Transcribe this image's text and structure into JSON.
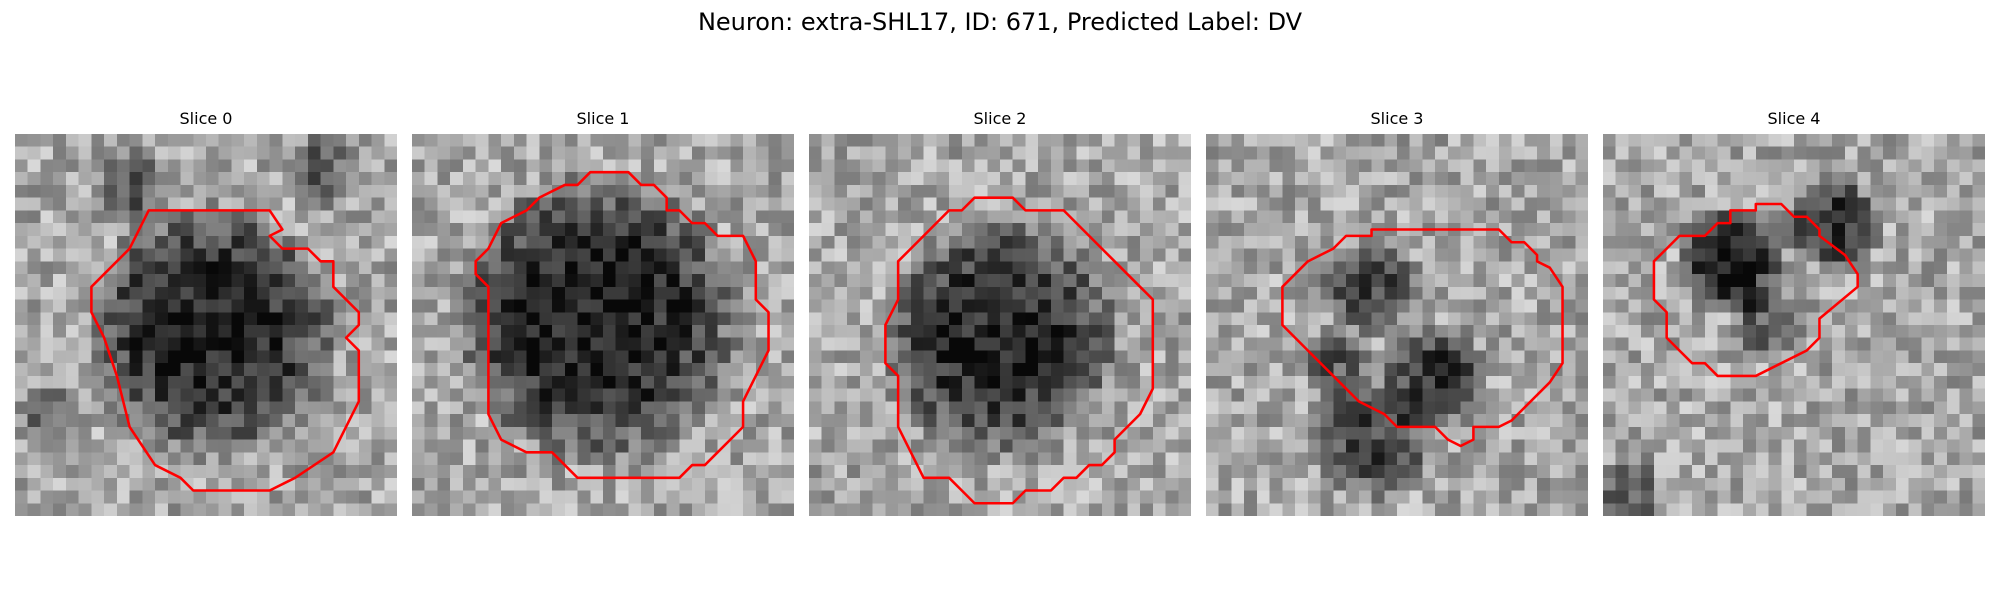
{
  "figure": {
    "title": "Neuron: extra-SHL17, ID: 671, Predicted Label: DV"
  },
  "contour_color": "#ff0000",
  "grid_cells": 30,
  "panels": [
    {
      "title": "Slice 0",
      "seed": 11,
      "blobs": [
        {
          "cx": 15.5,
          "cy": 15.5,
          "r": 10.5,
          "depth": 0.55
        },
        {
          "cx": 9,
          "cy": 4,
          "r": 3,
          "depth": 0.35
        },
        {
          "cx": 24,
          "cy": 3,
          "r": 3,
          "depth": 0.3
        },
        {
          "cx": 3,
          "cy": 22,
          "r": 3,
          "depth": 0.25
        }
      ],
      "contour": [
        [
          10.5,
          6
        ],
        [
          16.5,
          6
        ],
        [
          20,
          6
        ],
        [
          21,
          7.5
        ],
        [
          20,
          8
        ],
        [
          21,
          9
        ],
        [
          23,
          9
        ],
        [
          24,
          10
        ],
        [
          25,
          10
        ],
        [
          25,
          12
        ],
        [
          27,
          14
        ],
        [
          27,
          15
        ],
        [
          26,
          16
        ],
        [
          27,
          17
        ],
        [
          27,
          21
        ],
        [
          26,
          23
        ],
        [
          25,
          25
        ],
        [
          22,
          27
        ],
        [
          20,
          28
        ],
        [
          14,
          28
        ],
        [
          13,
          27
        ],
        [
          11,
          26
        ],
        [
          9,
          23
        ],
        [
          8,
          19
        ],
        [
          7,
          16
        ],
        [
          6,
          14
        ],
        [
          6,
          12
        ],
        [
          7,
          11
        ],
        [
          9,
          9
        ],
        [
          10,
          7
        ]
      ]
    },
    {
      "title": "Slice 1",
      "seed": 23,
      "blobs": [
        {
          "cx": 14.5,
          "cy": 14.5,
          "r": 12,
          "depth": 0.55
        }
      ],
      "contour": [
        [
          16,
          3
        ],
        [
          17,
          3
        ],
        [
          18,
          4
        ],
        [
          19,
          4
        ],
        [
          20,
          5
        ],
        [
          20,
          6
        ],
        [
          21,
          6
        ],
        [
          22,
          7
        ],
        [
          23,
          7
        ],
        [
          24,
          8
        ],
        [
          26,
          8
        ],
        [
          27,
          10
        ],
        [
          27,
          13
        ],
        [
          28,
          14
        ],
        [
          28,
          17
        ],
        [
          27,
          19
        ],
        [
          26,
          21
        ],
        [
          26,
          23
        ],
        [
          25,
          24
        ],
        [
          24,
          25
        ],
        [
          23,
          26
        ],
        [
          22,
          26
        ],
        [
          21,
          27
        ],
        [
          13,
          27
        ],
        [
          11,
          25
        ],
        [
          9,
          25
        ],
        [
          7,
          24
        ],
        [
          6,
          22
        ],
        [
          6,
          12
        ],
        [
          5,
          11
        ],
        [
          5,
          10
        ],
        [
          6,
          9
        ],
        [
          7,
          7
        ],
        [
          9,
          6
        ],
        [
          10,
          5
        ],
        [
          12,
          4
        ],
        [
          13,
          4
        ],
        [
          14,
          3
        ]
      ]
    },
    {
      "title": "Slice 2",
      "seed": 37,
      "blobs": [
        {
          "cx": 15,
          "cy": 16,
          "r": 10,
          "depth": 0.52
        }
      ],
      "contour": [
        [
          13,
          5
        ],
        [
          16,
          5
        ],
        [
          17,
          6
        ],
        [
          20,
          6
        ],
        [
          21,
          7
        ],
        [
          22,
          8
        ],
        [
          23,
          9
        ],
        [
          24,
          10
        ],
        [
          25,
          11
        ],
        [
          26,
          12
        ],
        [
          27,
          13
        ],
        [
          27,
          20
        ],
        [
          26,
          22
        ],
        [
          25,
          23
        ],
        [
          24,
          24
        ],
        [
          24,
          25
        ],
        [
          23,
          26
        ],
        [
          22,
          26
        ],
        [
          21,
          27
        ],
        [
          20,
          27
        ],
        [
          19,
          28
        ],
        [
          17,
          28
        ],
        [
          16,
          29
        ],
        [
          13,
          29
        ],
        [
          12,
          28
        ],
        [
          11,
          27
        ],
        [
          9,
          27
        ],
        [
          8,
          25
        ],
        [
          7,
          23
        ],
        [
          7,
          19
        ],
        [
          6,
          18
        ],
        [
          6,
          15
        ],
        [
          7,
          13
        ],
        [
          7,
          10
        ],
        [
          8,
          9
        ],
        [
          9,
          8
        ],
        [
          10,
          7
        ],
        [
          11,
          6
        ],
        [
          12,
          6
        ]
      ]
    },
    {
      "title": "Slice 3",
      "seed": 59,
      "blobs": [
        {
          "cx": 13,
          "cy": 12,
          "r": 4,
          "depth": 0.4
        },
        {
          "cx": 18,
          "cy": 19,
          "r": 4.5,
          "depth": 0.45
        },
        {
          "cx": 13,
          "cy": 24,
          "r": 5,
          "depth": 0.4
        },
        {
          "cx": 10,
          "cy": 18,
          "r": 3,
          "depth": 0.3
        }
      ],
      "contour": [
        [
          12,
          8
        ],
        [
          13,
          8
        ],
        [
          13,
          7.5
        ],
        [
          23,
          7.5
        ],
        [
          24,
          8.5
        ],
        [
          25,
          8.5
        ],
        [
          26,
          9.5
        ],
        [
          26,
          10
        ],
        [
          27,
          10.5
        ],
        [
          28,
          12
        ],
        [
          28,
          18
        ],
        [
          27,
          19.5
        ],
        [
          24,
          22.5
        ],
        [
          23,
          23
        ],
        [
          22,
          23
        ],
        [
          21,
          23
        ],
        [
          21,
          24
        ],
        [
          20,
          24.5
        ],
        [
          19,
          24
        ],
        [
          18,
          23
        ],
        [
          15,
          23
        ],
        [
          14,
          22
        ],
        [
          12,
          21
        ],
        [
          8,
          17
        ],
        [
          6,
          15
        ],
        [
          6,
          12
        ],
        [
          7,
          11
        ],
        [
          8,
          10
        ],
        [
          10,
          9
        ],
        [
          11,
          8
        ]
      ]
    },
    {
      "title": "Slice 4",
      "seed": 83,
      "blobs": [
        {
          "cx": 10,
          "cy": 10,
          "r": 4.5,
          "depth": 0.55
        },
        {
          "cx": 18,
          "cy": 7,
          "r": 4,
          "depth": 0.45
        },
        {
          "cx": 13,
          "cy": 15,
          "r": 3,
          "depth": 0.3
        },
        {
          "cx": 2,
          "cy": 28,
          "r": 3,
          "depth": 0.3
        }
      ],
      "contour": [
        [
          8,
          8
        ],
        [
          9,
          7
        ],
        [
          10,
          7
        ],
        [
          10,
          6
        ],
        [
          12,
          6
        ],
        [
          12,
          5.5
        ],
        [
          14,
          5.5
        ],
        [
          15,
          6.5
        ],
        [
          16,
          6.5
        ],
        [
          17,
          7.5
        ],
        [
          17,
          8
        ],
        [
          19,
          9.5
        ],
        [
          20,
          11
        ],
        [
          20,
          12
        ],
        [
          17,
          14.5
        ],
        [
          17,
          16
        ],
        [
          16,
          17
        ],
        [
          14,
          18
        ],
        [
          12,
          19
        ],
        [
          10,
          19
        ],
        [
          9,
          19
        ],
        [
          8,
          18
        ],
        [
          7,
          18
        ],
        [
          6,
          17
        ],
        [
          5,
          16
        ],
        [
          5,
          14
        ],
        [
          4,
          13
        ],
        [
          4,
          10
        ],
        [
          5,
          9
        ],
        [
          6,
          8
        ]
      ]
    }
  ]
}
